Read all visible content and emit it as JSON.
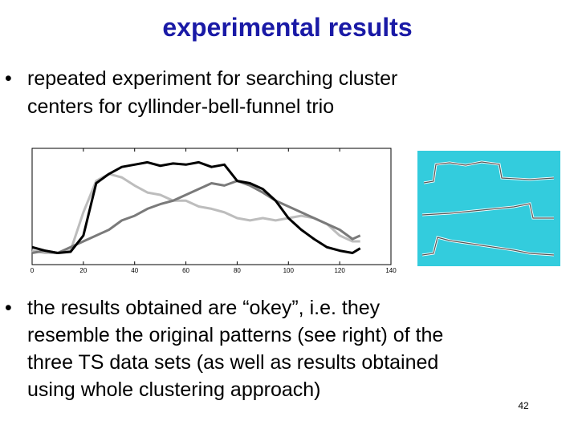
{
  "title": "experimental results",
  "bullets": [
    [
      "repeated experiment for searching cluster",
      "centers for cyllinder-bell-funnel trio"
    ],
    [
      "the results obtained are “okey”, i.e. they",
      "resemble the original patterns (see right) of the",
      "three TS data sets (as well as results obtained",
      "using whole clustering approach)"
    ]
  ],
  "page_number": "42",
  "chart_data": {
    "type": "line",
    "x": [
      0,
      5,
      10,
      15,
      20,
      25,
      30,
      35,
      40,
      45,
      50,
      55,
      60,
      65,
      70,
      75,
      80,
      85,
      90,
      95,
      100,
      105,
      110,
      115,
      120,
      125,
      128
    ],
    "series": [
      {
        "color": "#000000",
        "values": [
          0.15,
          0.12,
          0.1,
          0.11,
          0.25,
          0.7,
          0.78,
          0.84,
          0.86,
          0.88,
          0.85,
          0.87,
          0.86,
          0.88,
          0.84,
          0.86,
          0.72,
          0.7,
          0.65,
          0.55,
          0.4,
          0.3,
          0.22,
          0.15,
          0.12,
          0.1,
          0.14
        ]
      },
      {
        "color": "#bdbdbd",
        "values": [
          0.12,
          0.1,
          0.1,
          0.12,
          0.45,
          0.72,
          0.78,
          0.75,
          0.68,
          0.62,
          0.6,
          0.55,
          0.55,
          0.5,
          0.48,
          0.45,
          0.4,
          0.38,
          0.4,
          0.38,
          0.4,
          0.42,
          0.4,
          0.35,
          0.25,
          0.2,
          0.2
        ]
      },
      {
        "color": "#7a7a7a",
        "values": [
          0.1,
          0.12,
          0.1,
          0.15,
          0.2,
          0.25,
          0.3,
          0.38,
          0.42,
          0.48,
          0.52,
          0.55,
          0.6,
          0.65,
          0.7,
          0.68,
          0.72,
          0.68,
          0.62,
          0.55,
          0.5,
          0.45,
          0.4,
          0.35,
          0.3,
          0.22,
          0.25
        ]
      }
    ],
    "xlim": [
      0,
      140
    ],
    "xticks": [
      0,
      20,
      40,
      60,
      80,
      100,
      120,
      140
    ],
    "ylim": [
      0,
      1
    ]
  }
}
